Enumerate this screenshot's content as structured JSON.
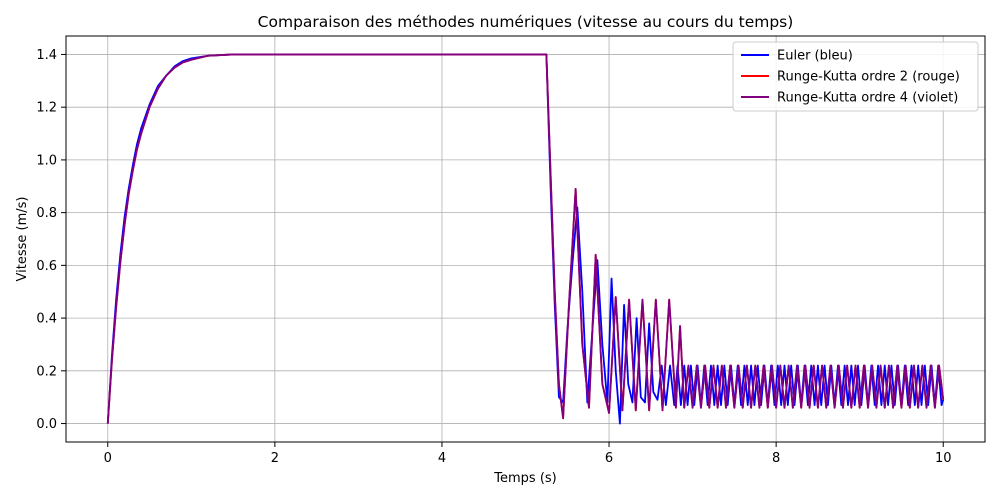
{
  "chart_data": {
    "type": "line",
    "title": "Comparaison des méthodes numériques (vitesse au cours du temps)",
    "xlabel": "Temps (s)",
    "ylabel": "Vitesse (m/s)",
    "xlim": [
      -0.5,
      10.5
    ],
    "ylim": [
      -0.07,
      1.47
    ],
    "xticks": [
      0,
      2,
      4,
      6,
      8,
      10
    ],
    "yticks": [
      0.0,
      0.2,
      0.4,
      0.6,
      0.8,
      1.0,
      1.2,
      1.4
    ],
    "xtick_labels": [
      "0",
      "2",
      "4",
      "6",
      "8",
      "10"
    ],
    "ytick_labels": [
      "0.0",
      "0.2",
      "0.4",
      "0.6",
      "0.8",
      "1.0",
      "1.2",
      "1.4"
    ],
    "grid": true,
    "legend_position": "top-right",
    "series": [
      {
        "name": "Euler (bleu)",
        "color": "#0000ff",
        "x": [
          0,
          0.05,
          0.1,
          0.15,
          0.2,
          0.25,
          0.3,
          0.35,
          0.4,
          0.5,
          0.6,
          0.7,
          0.8,
          0.9,
          1.0,
          1.2,
          1.5,
          2.0,
          3.0,
          4.0,
          5.0,
          5.25,
          5.3,
          5.35,
          5.4,
          5.45,
          5.5,
          5.56,
          5.62,
          5.68,
          5.74,
          5.8,
          5.86,
          5.92,
          5.98,
          6.03,
          6.08,
          6.13,
          6.18,
          6.23,
          6.28,
          6.33,
          6.38,
          6.43,
          6.48,
          6.53,
          6.58,
          6.63,
          6.68,
          6.73,
          6.78,
          6.82,
          6.86,
          6.9,
          6.94,
          6.98,
          7.02,
          7.06,
          7.1,
          7.14,
          7.18,
          7.22,
          7.26,
          7.3,
          7.34,
          7.38,
          7.42,
          7.46,
          7.5,
          7.54,
          7.58,
          7.62,
          7.66,
          7.7,
          7.74,
          7.78,
          7.82,
          7.86,
          7.9,
          7.94,
          7.98,
          8.02,
          8.06,
          8.1,
          8.14,
          8.18,
          8.22,
          8.26,
          8.3,
          8.34,
          8.38,
          8.42,
          8.46,
          8.5,
          8.54,
          8.58,
          8.62,
          8.66,
          8.7,
          8.74,
          8.78,
          8.82,
          8.86,
          8.9,
          8.94,
          8.98,
          9.02,
          9.06,
          9.1,
          9.14,
          9.18,
          9.22,
          9.26,
          9.3,
          9.34,
          9.38,
          9.42,
          9.46,
          9.5,
          9.54,
          9.58,
          9.62,
          9.66,
          9.7,
          9.74,
          9.78,
          9.82,
          9.86,
          9.9,
          9.94,
          9.98,
          10.0
        ],
        "y": [
          0.0,
          0.26,
          0.47,
          0.64,
          0.78,
          0.89,
          0.98,
          1.06,
          1.12,
          1.21,
          1.28,
          1.32,
          1.355,
          1.375,
          1.385,
          1.395,
          1.4,
          1.4,
          1.4,
          1.4,
          1.4,
          1.4,
          0.9,
          0.45,
          0.1,
          0.08,
          0.35,
          0.6,
          0.82,
          0.5,
          0.08,
          0.35,
          0.62,
          0.3,
          0.08,
          0.55,
          0.2,
          0.0,
          0.45,
          0.15,
          0.08,
          0.4,
          0.1,
          0.08,
          0.38,
          0.12,
          0.09,
          0.22,
          0.07,
          0.22,
          0.07,
          0.22,
          0.07,
          0.22,
          0.07,
          0.22,
          0.07,
          0.22,
          0.07,
          0.22,
          0.07,
          0.22,
          0.07,
          0.22,
          0.07,
          0.22,
          0.07,
          0.22,
          0.07,
          0.22,
          0.07,
          0.22,
          0.07,
          0.22,
          0.07,
          0.22,
          0.07,
          0.22,
          0.07,
          0.22,
          0.07,
          0.22,
          0.07,
          0.22,
          0.07,
          0.22,
          0.07,
          0.22,
          0.07,
          0.22,
          0.07,
          0.22,
          0.07,
          0.22,
          0.07,
          0.22,
          0.07,
          0.22,
          0.07,
          0.22,
          0.07,
          0.22,
          0.07,
          0.22,
          0.07,
          0.22,
          0.07,
          0.22,
          0.07,
          0.22,
          0.07,
          0.22,
          0.07,
          0.22,
          0.07,
          0.22,
          0.07,
          0.22,
          0.07,
          0.22,
          0.07,
          0.22,
          0.07,
          0.22,
          0.07,
          0.22,
          0.07,
          0.22,
          0.07,
          0.22,
          0.07,
          0.09
        ]
      },
      {
        "name": "Runge-Kutta ordre 2 (rouge)",
        "color": "#ff0000",
        "x": [
          0,
          0.05,
          0.1,
          0.15,
          0.2,
          0.25,
          0.3,
          0.35,
          0.4,
          0.5,
          0.6,
          0.7,
          0.8,
          0.9,
          1.0,
          1.2,
          1.5,
          2.0,
          3.0,
          4.0,
          5.0,
          5.25,
          5.3,
          5.35,
          5.4,
          5.45,
          5.52,
          5.6,
          5.68,
          5.76,
          5.84,
          5.92,
          6.0,
          6.08,
          6.16,
          6.24,
          6.32,
          6.4,
          6.48,
          6.56,
          6.64,
          6.72,
          6.8,
          6.85,
          6.9,
          6.95,
          7.0,
          7.05,
          7.1,
          7.15,
          7.2,
          7.25,
          7.3,
          7.35,
          7.4,
          7.45,
          7.5,
          7.55,
          7.6,
          7.65,
          7.7,
          7.75,
          7.8,
          7.85,
          7.9,
          7.95,
          8.0,
          8.05,
          8.1,
          8.15,
          8.2,
          8.25,
          8.3,
          8.35,
          8.4,
          8.45,
          8.5,
          8.55,
          8.6,
          8.65,
          8.7,
          8.75,
          8.8,
          8.85,
          8.9,
          8.95,
          9.0,
          9.05,
          9.1,
          9.15,
          9.2,
          9.25,
          9.3,
          9.35,
          9.4,
          9.45,
          9.5,
          9.55,
          9.6,
          9.65,
          9.7,
          9.75,
          9.8,
          9.85,
          9.9,
          9.95,
          10.0
        ],
        "y": [
          0.0,
          0.24,
          0.44,
          0.61,
          0.75,
          0.87,
          0.96,
          1.04,
          1.1,
          1.2,
          1.27,
          1.32,
          1.35,
          1.37,
          1.38,
          1.395,
          1.4,
          1.4,
          1.4,
          1.4,
          1.4,
          1.4,
          0.95,
          0.5,
          0.15,
          0.02,
          0.45,
          0.89,
          0.3,
          0.06,
          0.64,
          0.15,
          0.04,
          0.48,
          0.05,
          0.47,
          0.05,
          0.47,
          0.05,
          0.47,
          0.05,
          0.47,
          0.06,
          0.37,
          0.06,
          0.22,
          0.06,
          0.22,
          0.06,
          0.22,
          0.06,
          0.22,
          0.06,
          0.22,
          0.06,
          0.22,
          0.06,
          0.22,
          0.06,
          0.22,
          0.06,
          0.22,
          0.06,
          0.22,
          0.06,
          0.22,
          0.06,
          0.22,
          0.06,
          0.22,
          0.06,
          0.22,
          0.06,
          0.22,
          0.06,
          0.22,
          0.06,
          0.22,
          0.06,
          0.22,
          0.06,
          0.22,
          0.06,
          0.22,
          0.06,
          0.22,
          0.06,
          0.22,
          0.06,
          0.22,
          0.06,
          0.22,
          0.06,
          0.22,
          0.06,
          0.22,
          0.06,
          0.22,
          0.06,
          0.22,
          0.06,
          0.22,
          0.06,
          0.22,
          0.06,
          0.22,
          0.09
        ]
      },
      {
        "name": "Runge-Kutta ordre 4 (violet)",
        "color": "#800080",
        "x": [
          0,
          0.05,
          0.1,
          0.15,
          0.2,
          0.25,
          0.3,
          0.35,
          0.4,
          0.5,
          0.6,
          0.7,
          0.8,
          0.9,
          1.0,
          1.2,
          1.5,
          2.0,
          3.0,
          4.0,
          5.0,
          5.25,
          5.3,
          5.35,
          5.4,
          5.45,
          5.52,
          5.6,
          5.68,
          5.76,
          5.84,
          5.92,
          6.0,
          6.08,
          6.16,
          6.24,
          6.32,
          6.4,
          6.48,
          6.56,
          6.64,
          6.72,
          6.8,
          6.85,
          6.9,
          6.95,
          7.0,
          7.05,
          7.1,
          7.15,
          7.2,
          7.25,
          7.3,
          7.35,
          7.4,
          7.45,
          7.5,
          7.55,
          7.6,
          7.65,
          7.7,
          7.75,
          7.8,
          7.85,
          7.9,
          7.95,
          8.0,
          8.05,
          8.1,
          8.15,
          8.2,
          8.25,
          8.3,
          8.35,
          8.4,
          8.45,
          8.5,
          8.55,
          8.6,
          8.65,
          8.7,
          8.75,
          8.8,
          8.85,
          8.9,
          8.95,
          9.0,
          9.05,
          9.1,
          9.15,
          9.2,
          9.25,
          9.3,
          9.35,
          9.4,
          9.45,
          9.5,
          9.55,
          9.6,
          9.65,
          9.7,
          9.75,
          9.8,
          9.85,
          9.9,
          9.95,
          10.0
        ],
        "y": [
          0.0,
          0.24,
          0.44,
          0.61,
          0.75,
          0.87,
          0.96,
          1.04,
          1.1,
          1.2,
          1.27,
          1.32,
          1.35,
          1.37,
          1.38,
          1.395,
          1.4,
          1.4,
          1.4,
          1.4,
          1.4,
          1.4,
          0.95,
          0.5,
          0.15,
          0.02,
          0.45,
          0.89,
          0.3,
          0.06,
          0.64,
          0.15,
          0.04,
          0.48,
          0.05,
          0.47,
          0.05,
          0.47,
          0.05,
          0.47,
          0.05,
          0.47,
          0.06,
          0.37,
          0.06,
          0.22,
          0.06,
          0.22,
          0.06,
          0.22,
          0.06,
          0.22,
          0.06,
          0.22,
          0.06,
          0.22,
          0.06,
          0.22,
          0.06,
          0.22,
          0.06,
          0.22,
          0.06,
          0.22,
          0.06,
          0.22,
          0.06,
          0.22,
          0.06,
          0.22,
          0.06,
          0.22,
          0.06,
          0.22,
          0.06,
          0.22,
          0.06,
          0.22,
          0.06,
          0.22,
          0.06,
          0.22,
          0.06,
          0.22,
          0.06,
          0.22,
          0.06,
          0.22,
          0.06,
          0.22,
          0.06,
          0.22,
          0.06,
          0.22,
          0.06,
          0.22,
          0.06,
          0.22,
          0.06,
          0.22,
          0.06,
          0.22,
          0.06,
          0.22,
          0.06,
          0.22,
          0.09
        ]
      }
    ]
  }
}
